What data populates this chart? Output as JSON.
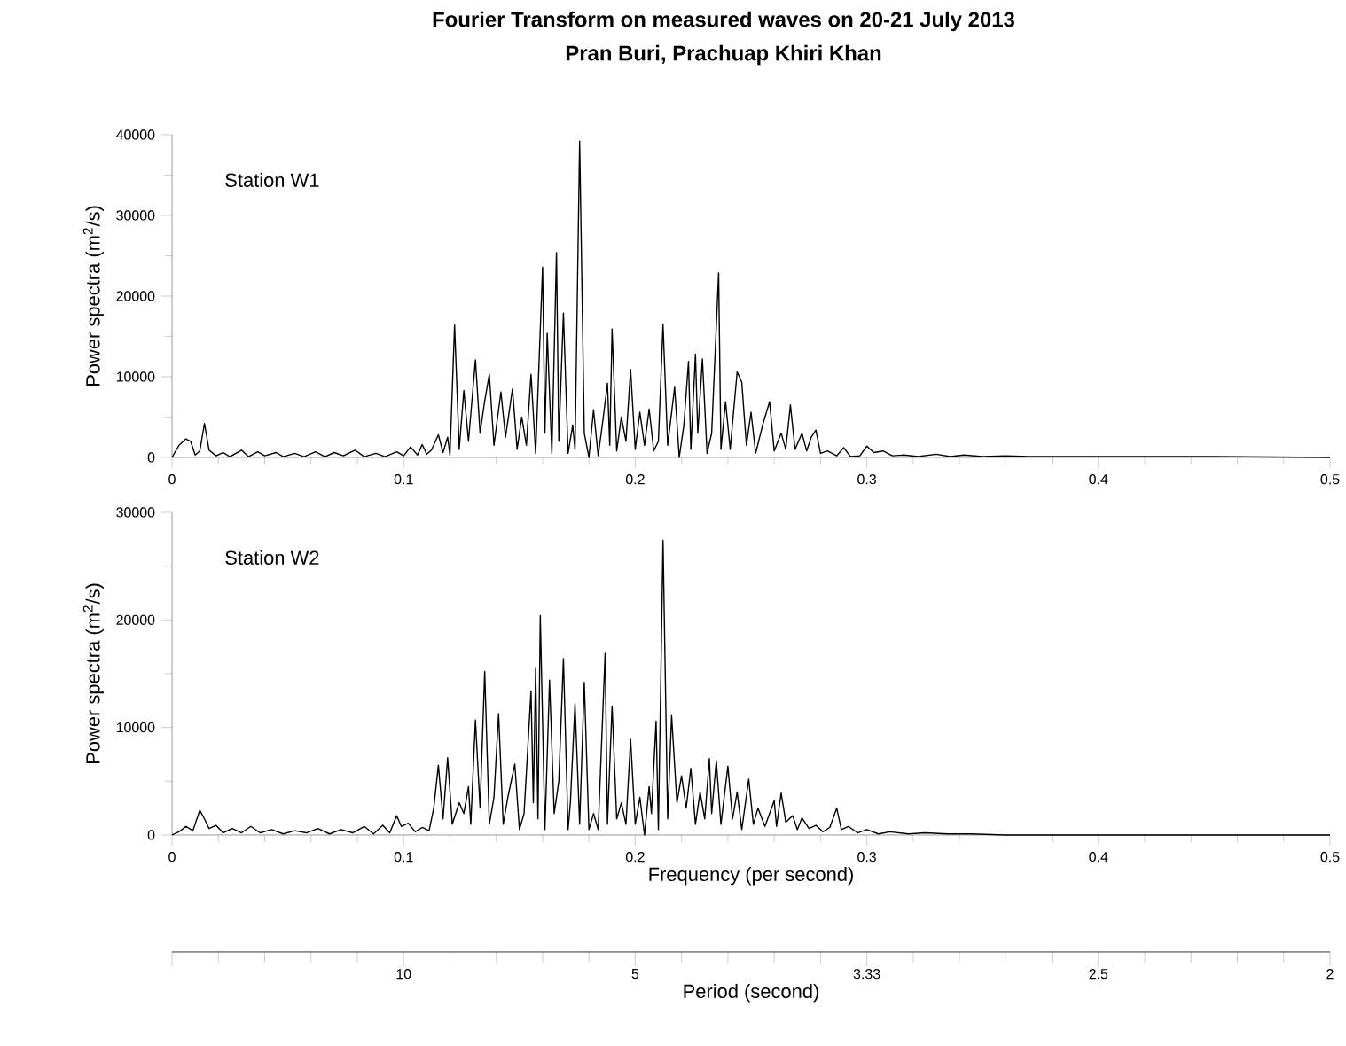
{
  "chart_data": [
    {
      "type": "line",
      "title": "Fourier Transform on measured waves on 20-21 July 2013",
      "subtitle": "Pran Buri, Prachuap Khiri Khan",
      "ylabel": "Power spectra (m$^{2}$/s)",
      "annotations": [
        "Station W1"
      ],
      "xlim": [
        0,
        0.5
      ],
      "xticks": [
        0,
        0.1,
        0.2,
        0.3,
        0.4,
        0.5
      ],
      "ylim": [
        0,
        40000
      ],
      "yticks": [
        0,
        10000,
        20000,
        30000,
        40000
      ],
      "grid": false,
      "marker": "none",
      "line_style": "solid",
      "series": [
        {
          "color": "#000000",
          "x": [
            0,
            0.003,
            0.006,
            0.008,
            0.01,
            0.012,
            0.014,
            0.016,
            0.019,
            0.022,
            0.025,
            0.03,
            0.033,
            0.037,
            0.04,
            0.045,
            0.048,
            0.053,
            0.057,
            0.062,
            0.066,
            0.07,
            0.074,
            0.079,
            0.083,
            0.088,
            0.092,
            0.097,
            0.1,
            0.103,
            0.106,
            0.108,
            0.11,
            0.112,
            0.115,
            0.117,
            0.119,
            0.12,
            0.122,
            0.124,
            0.126,
            0.128,
            0.131,
            0.133,
            0.135,
            0.137,
            0.139,
            0.142,
            0.144,
            0.147,
            0.149,
            0.151,
            0.153,
            0.155,
            0.157,
            0.16,
            0.161,
            0.162,
            0.164,
            0.166,
            0.167,
            0.169,
            0.171,
            0.173,
            0.174,
            0.176,
            0.178,
            0.18,
            0.182,
            0.184,
            0.186,
            0.188,
            0.189,
            0.19,
            0.192,
            0.194,
            0.196,
            0.198,
            0.2,
            0.202,
            0.204,
            0.206,
            0.208,
            0.21,
            0.212,
            0.214,
            0.217,
            0.219,
            0.221,
            0.223,
            0.224,
            0.226,
            0.227,
            0.229,
            0.231,
            0.233,
            0.236,
            0.237,
            0.239,
            0.241,
            0.244,
            0.246,
            0.248,
            0.25,
            0.252,
            0.255,
            0.258,
            0.26,
            0.263,
            0.265,
            0.267,
            0.269,
            0.272,
            0.274,
            0.276,
            0.278,
            0.28,
            0.283,
            0.287,
            0.29,
            0.293,
            0.297,
            0.3,
            0.303,
            0.307,
            0.311,
            0.316,
            0.322,
            0.33,
            0.336,
            0.342,
            0.35,
            0.36,
            0.37,
            0.4,
            0.45,
            0.5
          ],
          "values": [
            0,
            1500,
            2300,
            2000,
            300,
            800,
            4200,
            900,
            200,
            600,
            100,
            900,
            100,
            700,
            200,
            600,
            100,
            500,
            100,
            700,
            100,
            600,
            200,
            900,
            100,
            500,
            100,
            700,
            200,
            1300,
            300,
            1600,
            400,
            900,
            2800,
            600,
            2500,
            300,
            16400,
            1000,
            8300,
            2000,
            12100,
            3000,
            7000,
            10300,
            1500,
            8100,
            2500,
            8500,
            1000,
            5000,
            1500,
            10300,
            500,
            23600,
            3000,
            15400,
            500,
            25400,
            2000,
            17900,
            500,
            4000,
            1000,
            39200,
            3000,
            0,
            5900,
            200,
            4500,
            9200,
            1500,
            15900,
            800,
            5000,
            2000,
            10900,
            1000,
            5600,
            1500,
            6000,
            800,
            2000,
            16500,
            1500,
            8700,
            0,
            4000,
            11900,
            1000,
            12800,
            3000,
            12200,
            500,
            3000,
            22900,
            1000,
            6900,
            1000,
            10600,
            9300,
            1500,
            5600,
            500,
            4000,
            6900,
            800,
            3000,
            1000,
            6500,
            1000,
            3000,
            800,
            2500,
            3400,
            500,
            800,
            200,
            1200,
            100,
            200,
            1400,
            600,
            800,
            200,
            300,
            100,
            400,
            100,
            300,
            100,
            200,
            100,
            100,
            100,
            0
          ]
        }
      ]
    },
    {
      "type": "line",
      "xlabel": "Frequency (per second)",
      "ylabel": "Power spectra (m$^{2}$/s)",
      "annotations": [
        "Station W2"
      ],
      "xlim": [
        0,
        0.5
      ],
      "xticks": [
        0,
        0.1,
        0.2,
        0.3,
        0.4,
        0.5
      ],
      "ylim": [
        0,
        30000
      ],
      "yticks": [
        0,
        10000,
        20000,
        30000
      ],
      "grid": false,
      "marker": "none",
      "line_style": "solid",
      "series": [
        {
          "color": "#000000",
          "x": [
            0,
            0.003,
            0.006,
            0.009,
            0.012,
            0.014,
            0.016,
            0.019,
            0.022,
            0.026,
            0.03,
            0.034,
            0.038,
            0.043,
            0.048,
            0.053,
            0.058,
            0.063,
            0.068,
            0.073,
            0.078,
            0.083,
            0.087,
            0.091,
            0.094,
            0.097,
            0.099,
            0.102,
            0.105,
            0.108,
            0.111,
            0.113,
            0.115,
            0.117,
            0.119,
            0.121,
            0.124,
            0.126,
            0.128,
            0.129,
            0.131,
            0.133,
            0.135,
            0.137,
            0.139,
            0.141,
            0.143,
            0.145,
            0.148,
            0.15,
            0.152,
            0.155,
            0.156,
            0.157,
            0.158,
            0.159,
            0.161,
            0.163,
            0.165,
            0.167,
            0.169,
            0.171,
            0.172,
            0.174,
            0.176,
            0.178,
            0.18,
            0.182,
            0.184,
            0.187,
            0.188,
            0.19,
            0.192,
            0.194,
            0.196,
            0.198,
            0.2,
            0.202,
            0.204,
            0.206,
            0.207,
            0.209,
            0.21,
            0.212,
            0.214,
            0.2157,
            0.218,
            0.22,
            0.222,
            0.224,
            0.226,
            0.228,
            0.23,
            0.232,
            0.233,
            0.235,
            0.237,
            0.24,
            0.242,
            0.244,
            0.246,
            0.249,
            0.251,
            0.253,
            0.256,
            0.258,
            0.26,
            0.261,
            0.263,
            0.265,
            0.268,
            0.27,
            0.272,
            0.275,
            0.278,
            0.281,
            0.284,
            0.287,
            0.289,
            0.292,
            0.296,
            0.3,
            0.305,
            0.31,
            0.318,
            0.325,
            0.335,
            0.345,
            0.36,
            0.4,
            0.5
          ],
          "values": [
            0,
            300,
            800,
            400,
            2300,
            1500,
            600,
            900,
            200,
            600,
            200,
            800,
            200,
            500,
            100,
            400,
            200,
            600,
            100,
            500,
            200,
            800,
            100,
            900,
            200,
            1800,
            800,
            1100,
            300,
            700,
            400,
            2500,
            6500,
            1500,
            7200,
            1000,
            3000,
            2000,
            4500,
            1000,
            10700,
            2500,
            15200,
            1000,
            3500,
            11300,
            1000,
            3500,
            6600,
            500,
            2000,
            13400,
            3000,
            15500,
            1500,
            20400,
            500,
            14400,
            2000,
            5000,
            16400,
            500,
            3000,
            12200,
            1000,
            14200,
            500,
            2000,
            500,
            16900,
            1000,
            12000,
            1500,
            3000,
            1000,
            8900,
            1000,
            3500,
            0,
            4500,
            2000,
            10600,
            500,
            27400,
            1500,
            11100,
            3000,
            5500,
            2500,
            6200,
            1000,
            4000,
            1500,
            7100,
            2000,
            6900,
            1000,
            6400,
            1500,
            4000,
            500,
            5200,
            1000,
            2500,
            800,
            2000,
            3200,
            800,
            3900,
            1200,
            1800,
            500,
            1600,
            600,
            900,
            300,
            700,
            2500,
            500,
            800,
            200,
            500,
            100,
            300,
            100,
            200,
            100,
            100,
            0,
            0,
            0
          ]
        }
      ]
    },
    {
      "type": "other",
      "xlabel": "Period (second)",
      "categories": [
        null,
        "10",
        "5",
        "3.33",
        "2.5",
        "2"
      ]
    }
  ]
}
